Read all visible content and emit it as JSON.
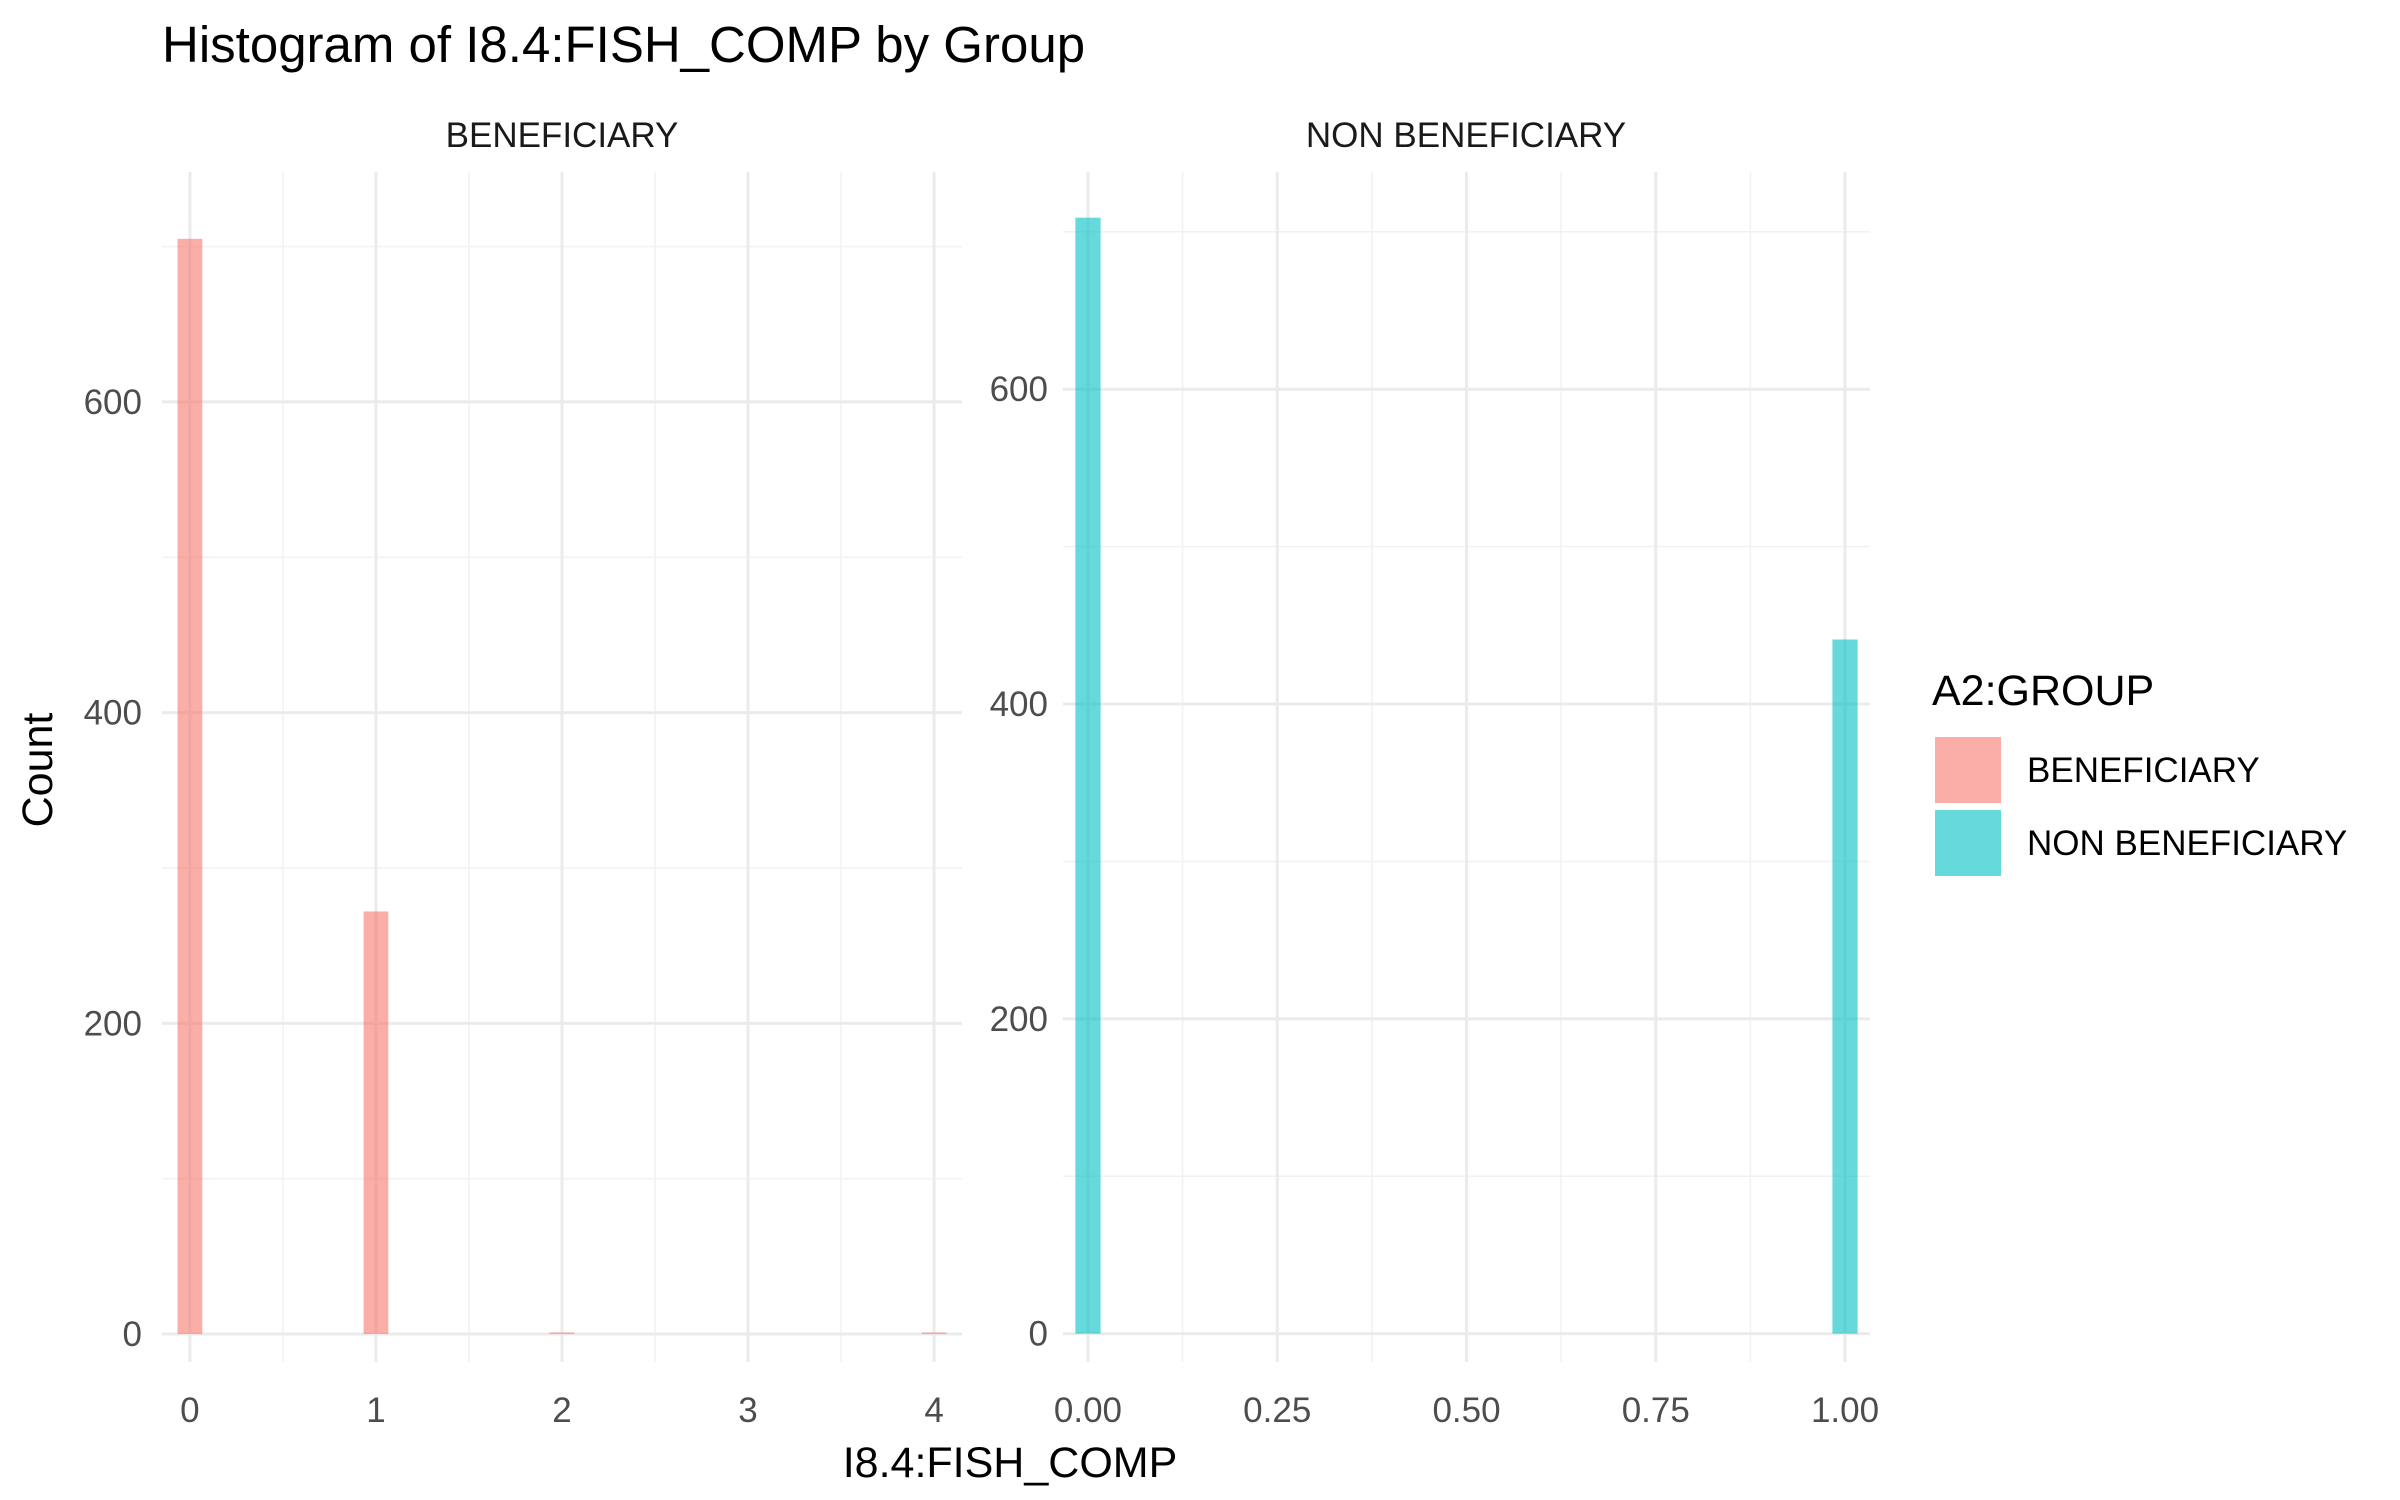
{
  "chart_data": {
    "type": "bar",
    "title": "Histogram of I8.4:FISH_COMP by Group",
    "xlabel": "I8.4:FISH_COMP",
    "ylabel": "Count",
    "legend": {
      "title": "A2:GROUP",
      "position": "right",
      "entries": [
        {
          "label": "BENEFICIARY",
          "color": "#F8766D"
        },
        {
          "label": "NON BENEFICIARY",
          "color": "#00BFC4"
        }
      ]
    },
    "grid": true,
    "bar_opacity": 0.6,
    "panels": [
      {
        "strip": "BENEFICIARY",
        "color": "#F8766D",
        "xlim": [
          -0.15,
          4.15
        ],
        "ylim": [
          -18,
          748
        ],
        "x_ticks": [
          0,
          1,
          2,
          3,
          4
        ],
        "x_tick_labels": [
          "0",
          "1",
          "2",
          "3",
          "4"
        ],
        "y_ticks": [
          0,
          200,
          400,
          600
        ],
        "y_tick_labels": [
          "0",
          "200",
          "400",
          "600"
        ],
        "bin_width": 0.133,
        "x": [
          0,
          1,
          2,
          4
        ],
        "counts": [
          705,
          272,
          1,
          1
        ]
      },
      {
        "strip": "NON BENEFICIARY",
        "color": "#00BFC4",
        "xlim": [
          -0.033,
          1.033
        ],
        "ylim": [
          -18,
          738
        ],
        "x_ticks": [
          0,
          0.25,
          0.5,
          0.75,
          1
        ],
        "x_tick_labels": [
          "0.00",
          "0.25",
          "0.50",
          "0.75",
          "1.00"
        ],
        "y_ticks": [
          0,
          200,
          400,
          600
        ],
        "y_tick_labels": [
          "0",
          "200",
          "400",
          "600"
        ],
        "bin_width": 0.0333,
        "x": [
          0,
          1
        ],
        "counts": [
          709,
          441
        ]
      }
    ]
  }
}
